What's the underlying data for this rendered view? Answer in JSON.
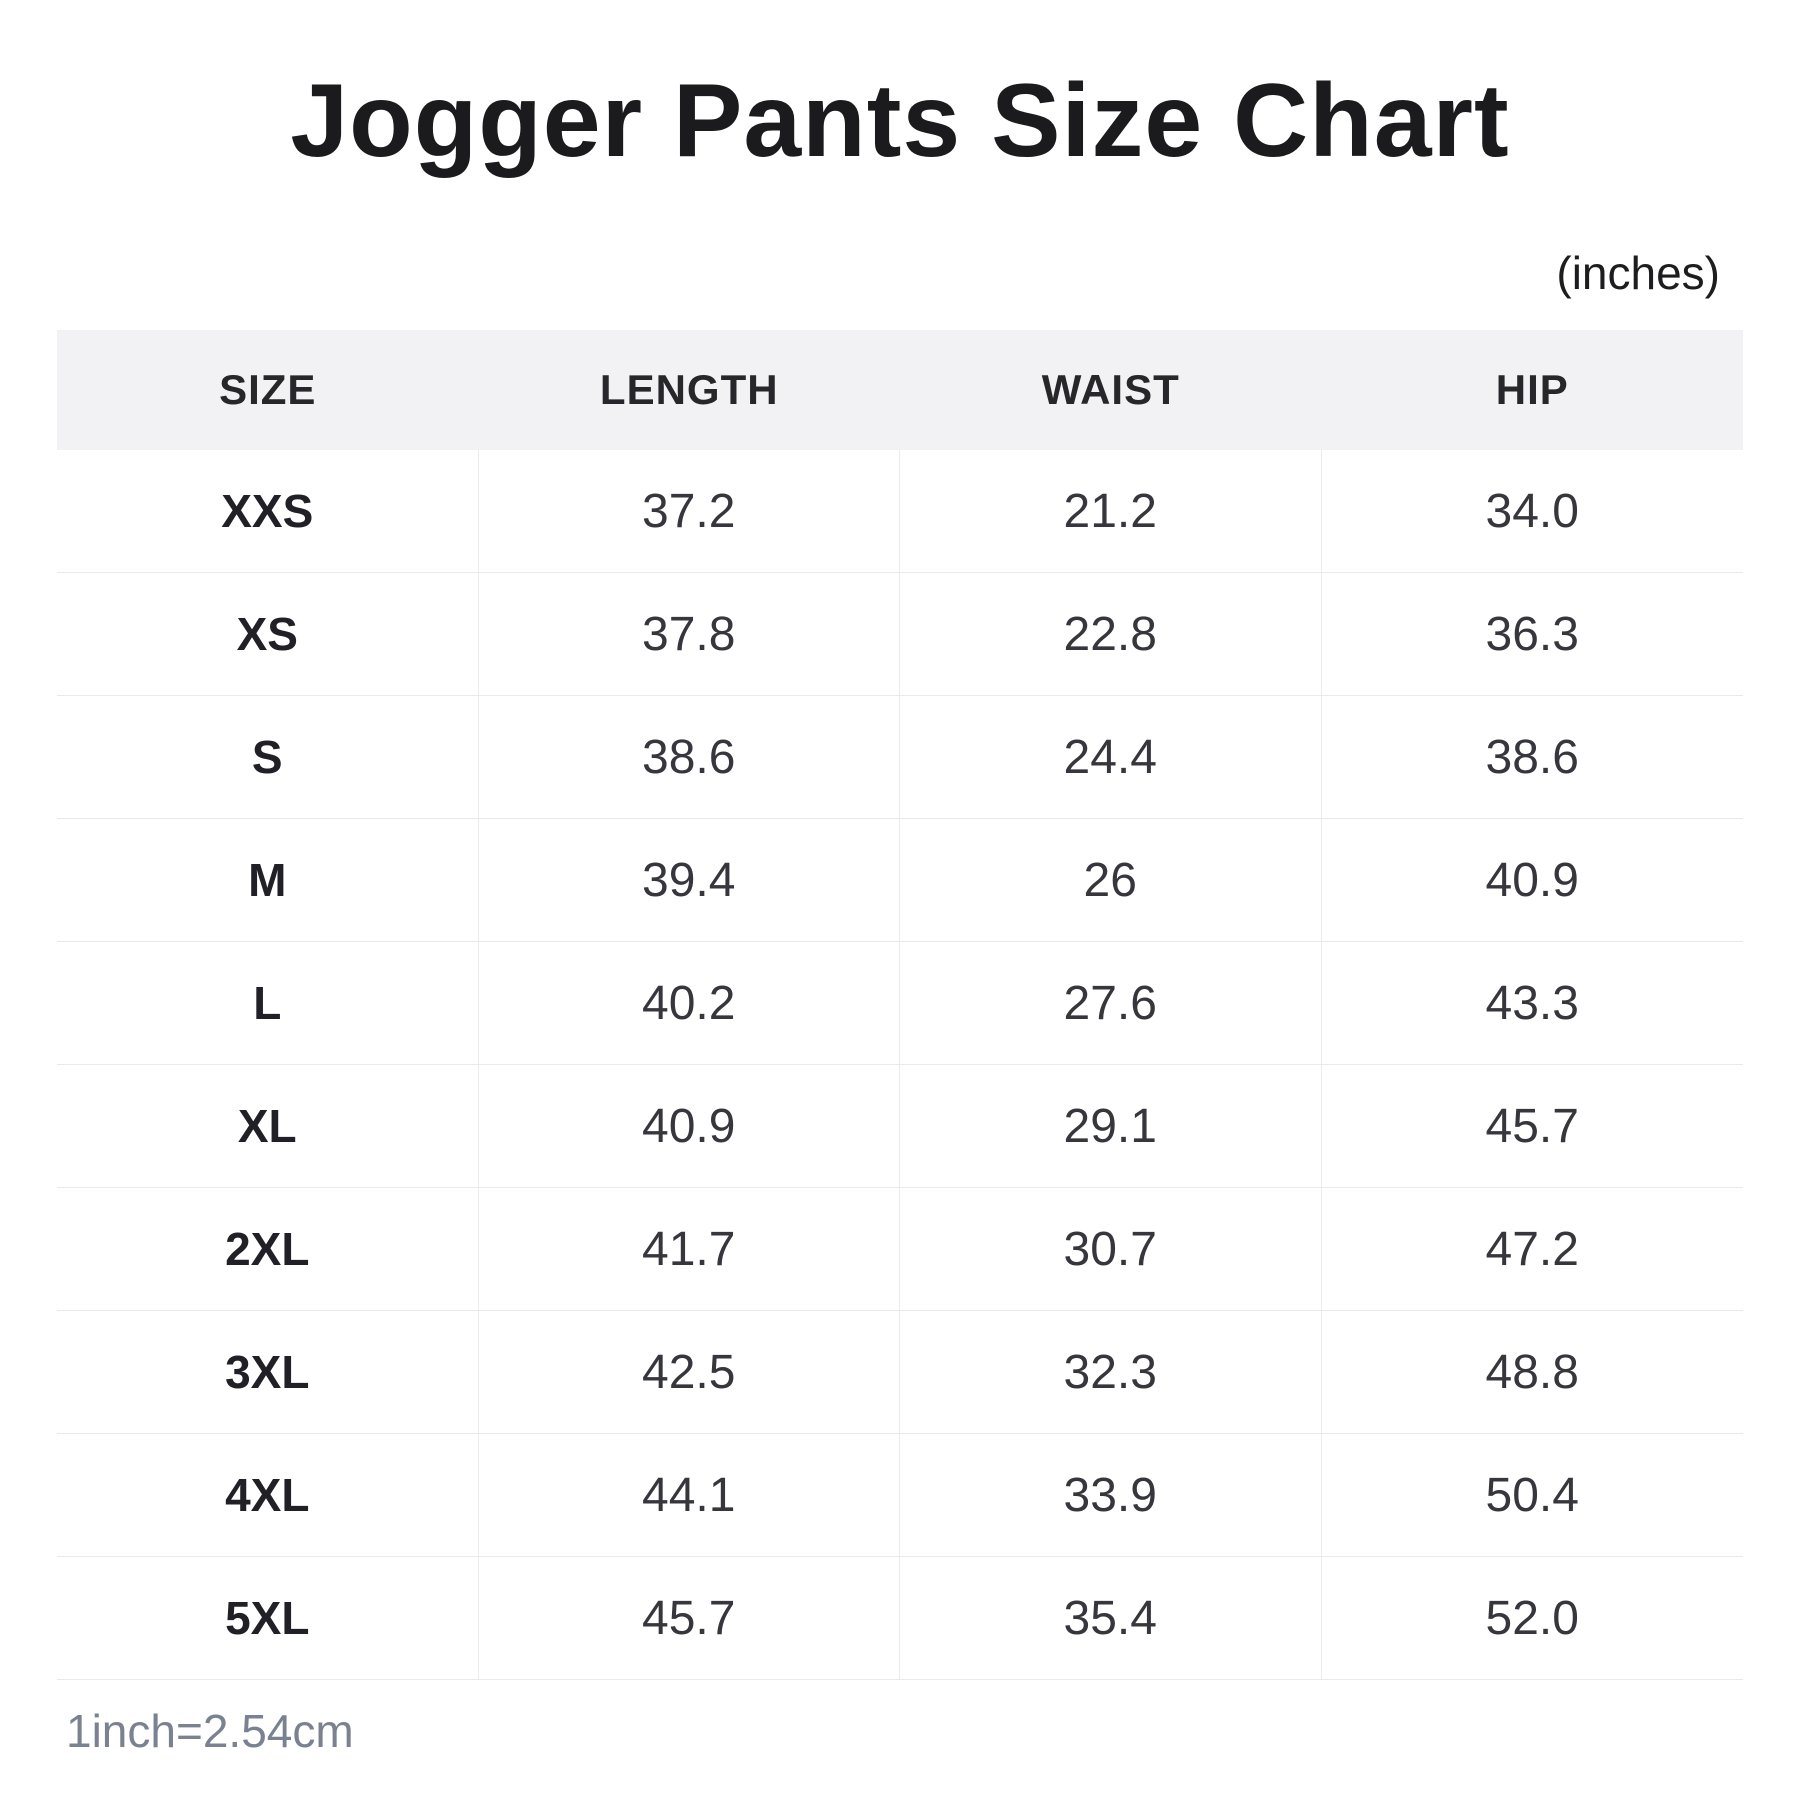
{
  "title": "Jogger Pants Size Chart",
  "unit_label": "(inches)",
  "chart_data": {
    "type": "table",
    "title": "Jogger Pants Size Chart",
    "unit": "inches",
    "columns": [
      "SIZE",
      "LENGTH",
      "WAIST",
      "HIP"
    ],
    "rows": [
      [
        "XXS",
        "37.2",
        "21.2",
        "34.0"
      ],
      [
        "XS",
        "37.8",
        "22.8",
        "36.3"
      ],
      [
        "S",
        "38.6",
        "24.4",
        "38.6"
      ],
      [
        "M",
        "39.4",
        "26",
        "40.9"
      ],
      [
        "L",
        "40.2",
        "27.6",
        "43.3"
      ],
      [
        "XL",
        "40.9",
        "29.1",
        "45.7"
      ],
      [
        "2XL",
        "41.7",
        "30.7",
        "47.2"
      ],
      [
        "3XL",
        "42.5",
        "32.3",
        "48.8"
      ],
      [
        "4XL",
        "44.1",
        "33.9",
        "50.4"
      ],
      [
        "5XL",
        "45.7",
        "35.4",
        "52.0"
      ]
    ],
    "note": "1inch=2.54cm",
    "legend_position": "none",
    "grid": "light-horizontal-and-vertical-separators"
  },
  "colors": {
    "header_bg": "#f2f2f4",
    "border": "#e9e9eb",
    "title_text": "#1b1b1d",
    "body_text": "#36363c",
    "note_text": "#7a8191"
  }
}
